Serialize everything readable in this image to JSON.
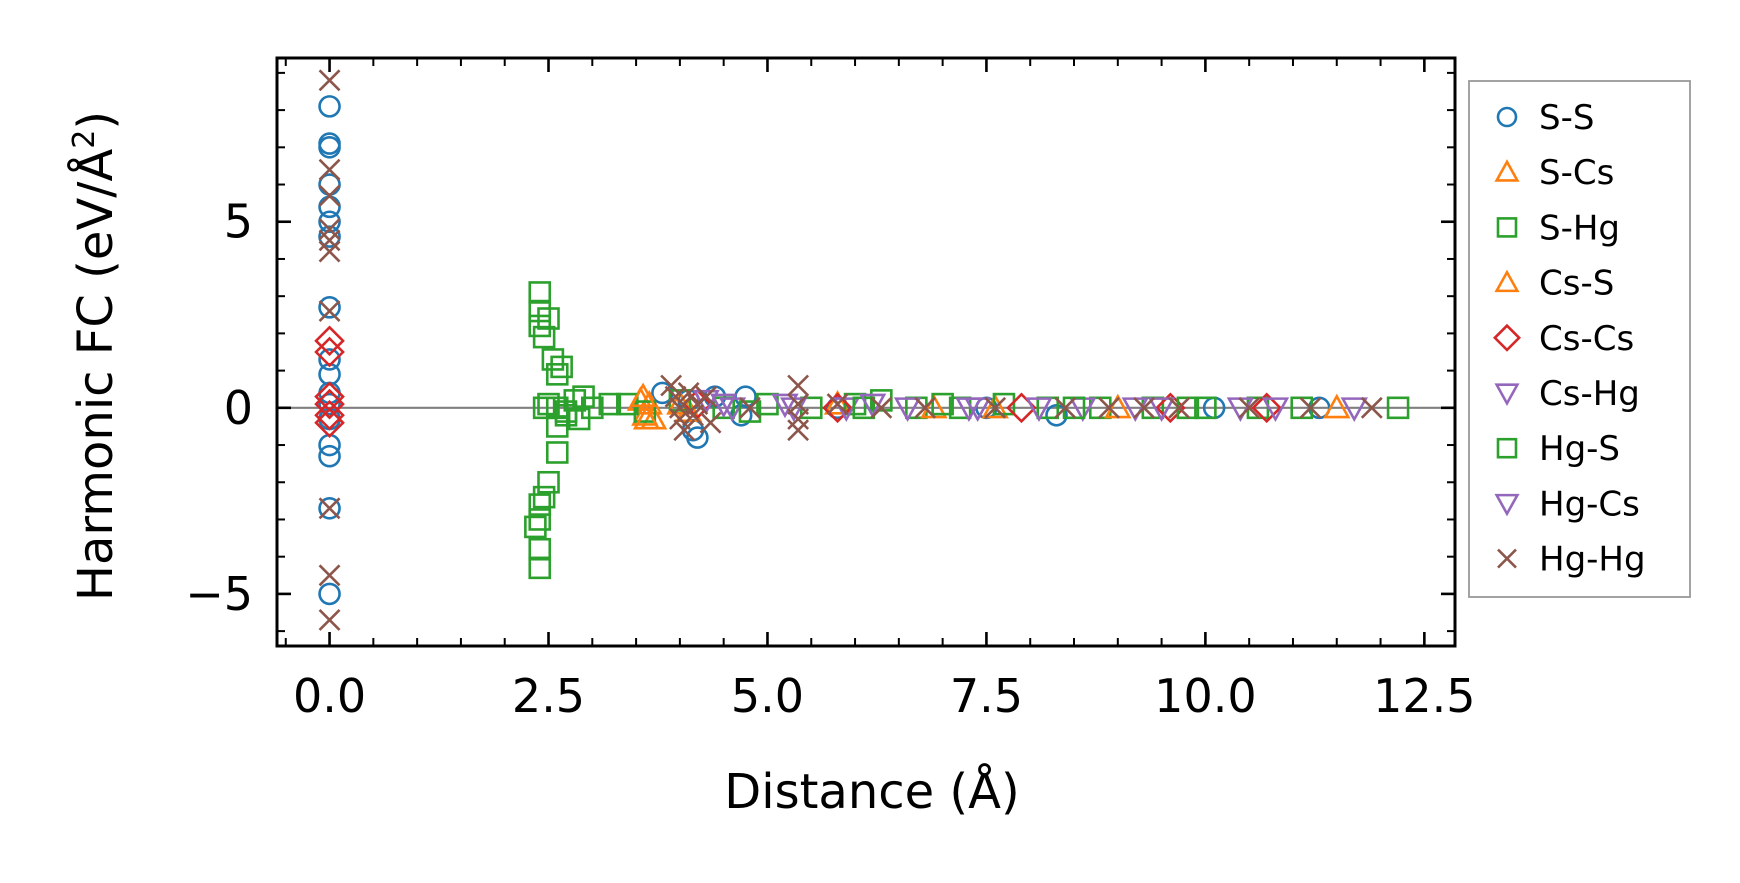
{
  "chart_data": {
    "type": "scatter",
    "title": "",
    "xlabel": "Distance (Å)",
    "ylabel_main": "Harmonic FC (eV/Å",
    "ylabel_sup": "2",
    "ylabel_close": ")",
    "xlim": [
      -0.6,
      12.85
    ],
    "ylim": [
      -6.4,
      9.4
    ],
    "xticks": [
      0.0,
      2.5,
      5.0,
      7.5,
      10.0,
      12.5
    ],
    "xtick_labels": [
      "0.0",
      "2.5",
      "5.0",
      "7.5",
      "10.0",
      "12.5"
    ],
    "yticks": [
      -5,
      0,
      5
    ],
    "ytick_labels": [
      "−5",
      "0",
      "5"
    ],
    "legend_position": "outside-right",
    "reference_line_y": 0,
    "series": [
      {
        "name": "S-S",
        "marker": "circle",
        "color": "#1f77b4",
        "points": [
          [
            0,
            8.1
          ],
          [
            0,
            7.1
          ],
          [
            0,
            7.0
          ],
          [
            0,
            6.0
          ],
          [
            0,
            5.4
          ],
          [
            0,
            5.0
          ],
          [
            0,
            4.6
          ],
          [
            0,
            2.7
          ],
          [
            0,
            1.3
          ],
          [
            0,
            0.9
          ],
          [
            0,
            0.4
          ],
          [
            0,
            0.1
          ],
          [
            0,
            -0.3
          ],
          [
            0,
            -1.0
          ],
          [
            0,
            -1.3
          ],
          [
            0,
            -2.7
          ],
          [
            0,
            -5.0
          ],
          [
            3.8,
            0.4
          ],
          [
            4.1,
            0.2
          ],
          [
            4.15,
            -0.6
          ],
          [
            4.2,
            -0.8
          ],
          [
            4.4,
            0.3
          ],
          [
            4.7,
            -0.2
          ],
          [
            4.75,
            0.3
          ],
          [
            5.8,
            0.0
          ],
          [
            7.5,
            0.0
          ],
          [
            8.3,
            -0.2
          ],
          [
            10.1,
            0.0
          ],
          [
            11.3,
            0.0
          ]
        ]
      },
      {
        "name": "S-Cs",
        "marker": "triangle-up",
        "color": "#ff7f0e",
        "points": [
          [
            3.55,
            0.2
          ],
          [
            3.6,
            -0.2
          ],
          [
            3.65,
            0.1
          ],
          [
            3.7,
            -0.3
          ],
          [
            4.1,
            -0.1
          ],
          [
            5.8,
            0.1
          ],
          [
            7.6,
            0.0
          ],
          [
            11.5,
            0.0
          ]
        ]
      },
      {
        "name": "S-Hg",
        "marker": "square",
        "color": "#2ca02c",
        "points": [
          [
            2.4,
            3.1
          ],
          [
            2.4,
            2.6
          ],
          [
            2.4,
            2.2
          ],
          [
            2.45,
            1.9
          ],
          [
            2.5,
            2.4
          ],
          [
            2.55,
            1.3
          ],
          [
            2.6,
            0.9
          ],
          [
            2.65,
            1.1
          ],
          [
            2.5,
            0.1
          ],
          [
            2.6,
            0.0
          ],
          [
            2.7,
            -0.1
          ],
          [
            2.8,
            0.2
          ],
          [
            2.85,
            -0.3
          ],
          [
            2.9,
            0.3
          ],
          [
            3.0,
            0.0
          ],
          [
            2.6,
            -0.5
          ],
          [
            2.6,
            -1.2
          ],
          [
            2.5,
            -2.0
          ],
          [
            2.45,
            -2.4
          ],
          [
            2.4,
            -2.6
          ],
          [
            2.4,
            -3.0
          ],
          [
            2.35,
            -3.2
          ],
          [
            2.4,
            -3.8
          ],
          [
            2.4,
            -4.3
          ],
          [
            3.4,
            0.1
          ],
          [
            3.6,
            -0.1
          ],
          [
            4.0,
            0.2
          ],
          [
            4.5,
            0.0
          ],
          [
            5.0,
            0.1
          ],
          [
            5.5,
            0.0
          ],
          [
            6.0,
            0.1
          ],
          [
            6.3,
            0.2
          ],
          [
            6.7,
            0.0
          ],
          [
            7.2,
            0.0
          ],
          [
            7.7,
            0.1
          ],
          [
            8.2,
            0.0
          ],
          [
            8.8,
            0.0
          ],
          [
            9.4,
            0.0
          ],
          [
            10.0,
            0.0
          ],
          [
            10.6,
            0.0
          ],
          [
            11.1,
            0.0
          ],
          [
            12.2,
            0.0
          ]
        ]
      },
      {
        "name": "Cs-S",
        "marker": "triangle-up",
        "color": "#ff7f0e",
        "points": [
          [
            3.58,
            0.3
          ],
          [
            3.62,
            -0.3
          ],
          [
            4.0,
            0.1
          ],
          [
            6.9,
            0.0
          ],
          [
            9.0,
            0.0
          ]
        ]
      },
      {
        "name": "Cs-Cs",
        "marker": "diamond",
        "color": "#d62728",
        "points": [
          [
            0,
            1.8
          ],
          [
            0,
            1.5
          ],
          [
            0,
            0.3
          ],
          [
            0,
            0.1
          ],
          [
            0,
            -0.2
          ],
          [
            0,
            -0.4
          ],
          [
            4.2,
            0.1
          ],
          [
            5.8,
            0.0
          ],
          [
            7.9,
            0.0
          ],
          [
            9.6,
            0.0
          ],
          [
            10.7,
            0.0
          ]
        ]
      },
      {
        "name": "Cs-Hg",
        "marker": "triangle-down",
        "color": "#9467bd",
        "points": [
          [
            4.3,
            0.2
          ],
          [
            4.6,
            0.0
          ],
          [
            5.2,
            0.1
          ],
          [
            5.9,
            0.0
          ],
          [
            6.6,
            0.0
          ],
          [
            7.4,
            0.0
          ],
          [
            8.6,
            0.0
          ],
          [
            9.5,
            0.0
          ],
          [
            10.8,
            0.0
          ],
          [
            11.7,
            0.0
          ]
        ]
      },
      {
        "name": "Hg-S",
        "marker": "square",
        "color": "#2ca02c",
        "points": [
          [
            2.45,
            0.0
          ],
          [
            2.7,
            -0.2
          ],
          [
            3.2,
            0.1
          ],
          [
            4.8,
            -0.1
          ],
          [
            6.1,
            0.0
          ],
          [
            7.0,
            0.1
          ],
          [
            8.5,
            0.0
          ],
          [
            9.8,
            0.0
          ]
        ]
      },
      {
        "name": "Hg-Cs",
        "marker": "triangle-down",
        "color": "#9467bd",
        "points": [
          [
            4.5,
            0.1
          ],
          [
            5.3,
            0.0
          ],
          [
            6.2,
            0.1
          ],
          [
            7.3,
            0.0
          ],
          [
            8.1,
            0.0
          ],
          [
            9.2,
            0.0
          ],
          [
            10.4,
            0.0
          ]
        ]
      },
      {
        "name": "Hg-Hg",
        "marker": "x",
        "color": "#8c564b",
        "points": [
          [
            0,
            8.8
          ],
          [
            0,
            6.4
          ],
          [
            0,
            5.7
          ],
          [
            0,
            4.8
          ],
          [
            0,
            4.5
          ],
          [
            0,
            4.2
          ],
          [
            0,
            2.6
          ],
          [
            0,
            -2.7
          ],
          [
            0,
            -4.5
          ],
          [
            0,
            -5.7
          ],
          [
            3.9,
            0.6
          ],
          [
            3.95,
            0.3
          ],
          [
            4.0,
            0.0
          ],
          [
            4.0,
            -0.3
          ],
          [
            4.05,
            -0.6
          ],
          [
            4.1,
            0.4
          ],
          [
            4.15,
            -0.2
          ],
          [
            4.2,
            0.1
          ],
          [
            4.3,
            0.3
          ],
          [
            4.35,
            -0.4
          ],
          [
            4.8,
            0.0
          ],
          [
            5.35,
            0.6
          ],
          [
            5.35,
            0.1
          ],
          [
            5.35,
            -0.3
          ],
          [
            5.35,
            -0.6
          ],
          [
            5.8,
            0.1
          ],
          [
            6.3,
            0.0
          ],
          [
            6.8,
            0.0
          ],
          [
            7.6,
            0.0
          ],
          [
            8.4,
            0.0
          ],
          [
            8.9,
            0.0
          ],
          [
            9.3,
            0.0
          ],
          [
            9.7,
            0.0
          ],
          [
            10.5,
            0.0
          ],
          [
            11.2,
            0.0
          ],
          [
            11.9,
            0.0
          ]
        ]
      }
    ]
  }
}
